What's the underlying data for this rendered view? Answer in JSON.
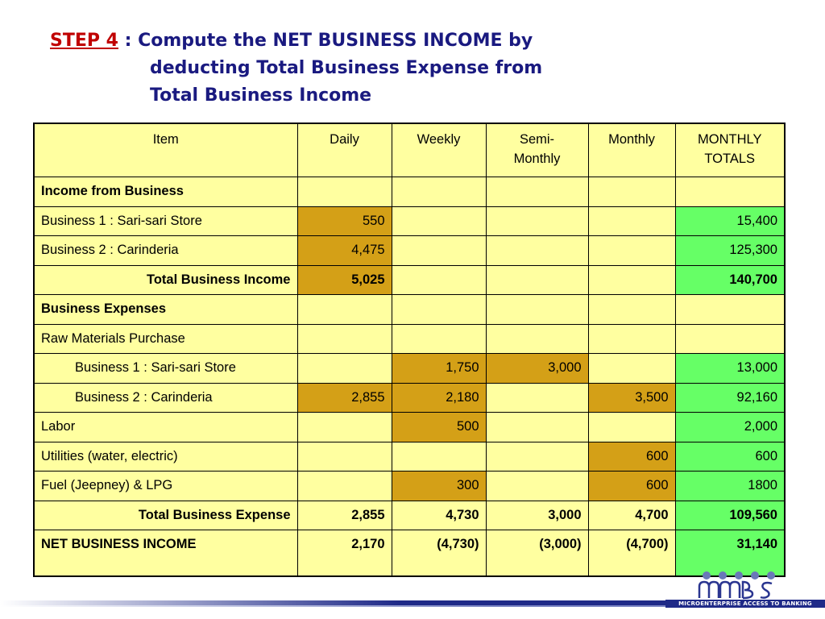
{
  "title": {
    "step": "STEP 4",
    "line1": " : Compute the NET BUSINESS INCOME by",
    "line2": "deducting Total Business Expense from",
    "line3": "Total Business Income"
  },
  "table": {
    "headers": [
      "Item",
      "Daily",
      "Weekly",
      "Semi-Monthly",
      "Monthly",
      "MONTHLY TOTALS"
    ],
    "header_semi_1": "Semi-",
    "header_semi_2": "Monthly",
    "header_totals_1": "MONTHLY",
    "header_totals_2": "TOTALS",
    "rows": [
      {
        "item": "Income from Business",
        "daily": "",
        "weekly": "",
        "semi": "",
        "monthly": "",
        "total": ""
      },
      {
        "item": "Business 1 : Sari-sari Store",
        "daily": "550",
        "weekly": "",
        "semi": "",
        "monthly": "",
        "total": "15,400"
      },
      {
        "item": "Business 2 : Carinderia",
        "daily": "4,475",
        "weekly": "",
        "semi": "",
        "monthly": "",
        "total": "125,300"
      },
      {
        "item": "Total Business Income",
        "daily": "5,025",
        "weekly": "",
        "semi": "",
        "monthly": "",
        "total": "140,700"
      },
      {
        "item": "Business Expenses",
        "daily": "",
        "weekly": "",
        "semi": "",
        "monthly": "",
        "total": ""
      },
      {
        "item": "Raw Materials Purchase",
        "daily": "",
        "weekly": "",
        "semi": "",
        "monthly": "",
        "total": ""
      },
      {
        "item": "Business 1 : Sari-sari Store",
        "daily": "",
        "weekly": "1,750",
        "semi": "3,000",
        "monthly": "",
        "total": "13,000"
      },
      {
        "item": "Business 2 : Carinderia",
        "daily": "2,855",
        "weekly": "2,180",
        "semi": "",
        "monthly": "3,500",
        "total": "92,160"
      },
      {
        "item": "Labor",
        "daily": "",
        "weekly": "500",
        "semi": "",
        "monthly": "",
        "total": "2,000"
      },
      {
        "item": "Utilities (water, electric)",
        "daily": "",
        "weekly": "",
        "semi": "",
        "monthly": "600",
        "total": "600"
      },
      {
        "item": "Fuel (Jeepney) & LPG",
        "daily": "",
        "weekly": "300",
        "semi": "",
        "monthly": "600",
        "total": "1800"
      },
      {
        "item": "Total Business Expense",
        "daily": "2,855",
        "weekly": "4,730",
        "semi": "3,000",
        "monthly": "4,700",
        "total": "109,560"
      },
      {
        "item": "NET BUSINESS INCOME",
        "daily": "2,170",
        "weekly": "(4,730)",
        "semi": "(3,000)",
        "monthly": "(4,700)",
        "total": "31,140"
      }
    ]
  },
  "colors": {
    "cell": "#ffffa0",
    "gold": "#d4a017",
    "green": "#66ff66",
    "title": "#1a1a80",
    "step": "#c00000"
  },
  "logo": {
    "text": "MABS",
    "tagline": "MICROENTERPRISE ACCESS TO BANKING SERVICES"
  }
}
